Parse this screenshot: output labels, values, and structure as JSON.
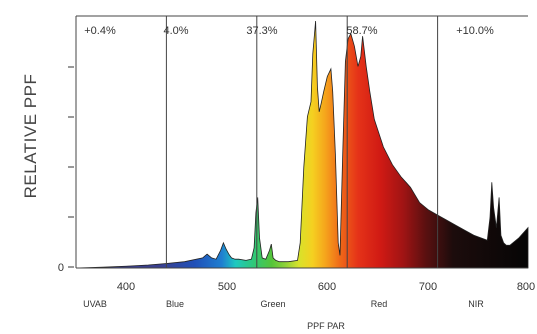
{
  "chart_data": {
    "type": "area",
    "title": "",
    "ylabel": "RELATIVE PPF",
    "xlabel": "PPF PAR",
    "xlim": [
      300,
      800
    ],
    "ylim": [
      0,
      1
    ],
    "y_ticks": [
      "0"
    ],
    "x_ticks": [
      "400",
      "500",
      "600",
      "700",
      "800"
    ],
    "grid": false,
    "dividers": [
      400,
      500,
      600,
      700
    ],
    "regions": [
      {
        "name": "UVAB",
        "percent": "+0.4%"
      },
      {
        "name": "Blue",
        "percent": "4.0%"
      },
      {
        "name": "Green",
        "percent": "37.3%"
      },
      {
        "name": "Red",
        "percent": "58.7%"
      },
      {
        "name": "NIR",
        "percent": "+10.0%"
      }
    ],
    "spectrum": {
      "x": [
        300,
        330,
        360,
        380,
        400,
        420,
        440,
        445,
        450,
        455,
        460,
        463,
        466,
        469,
        472,
        476,
        480,
        488,
        494,
        497,
        499,
        501,
        503,
        506,
        510,
        514,
        516,
        518,
        521,
        525,
        535,
        545,
        548,
        552,
        556,
        560,
        562,
        565,
        567,
        569,
        571,
        574,
        578,
        582,
        584,
        587,
        590,
        592,
        595,
        598,
        601,
        604,
        608,
        612,
        615,
        617,
        619,
        621,
        625,
        630,
        640,
        650,
        660,
        665,
        670,
        675,
        680,
        690,
        700,
        710,
        720,
        730,
        740,
        755,
        758,
        760,
        762,
        765,
        768,
        770,
        773,
        776,
        780,
        790,
        800
      ],
      "y": [
        0.0,
        0.003,
        0.008,
        0.012,
        0.018,
        0.025,
        0.04,
        0.055,
        0.04,
        0.035,
        0.07,
        0.1,
        0.075,
        0.055,
        0.04,
        0.035,
        0.035,
        0.03,
        0.035,
        0.08,
        0.22,
        0.28,
        0.12,
        0.04,
        0.035,
        0.07,
        0.095,
        0.04,
        0.03,
        0.025,
        0.025,
        0.03,
        0.1,
        0.4,
        0.6,
        0.66,
        0.85,
        0.98,
        0.72,
        0.62,
        0.65,
        0.7,
        0.76,
        0.79,
        0.7,
        0.45,
        0.1,
        0.05,
        0.45,
        0.82,
        0.91,
        0.93,
        0.88,
        0.8,
        0.84,
        0.92,
        0.86,
        0.8,
        0.7,
        0.59,
        0.48,
        0.41,
        0.36,
        0.34,
        0.32,
        0.29,
        0.26,
        0.23,
        0.21,
        0.19,
        0.17,
        0.15,
        0.13,
        0.11,
        0.2,
        0.34,
        0.24,
        0.16,
        0.28,
        0.13,
        0.1,
        0.09,
        0.09,
        0.12,
        0.16
      ]
    }
  }
}
